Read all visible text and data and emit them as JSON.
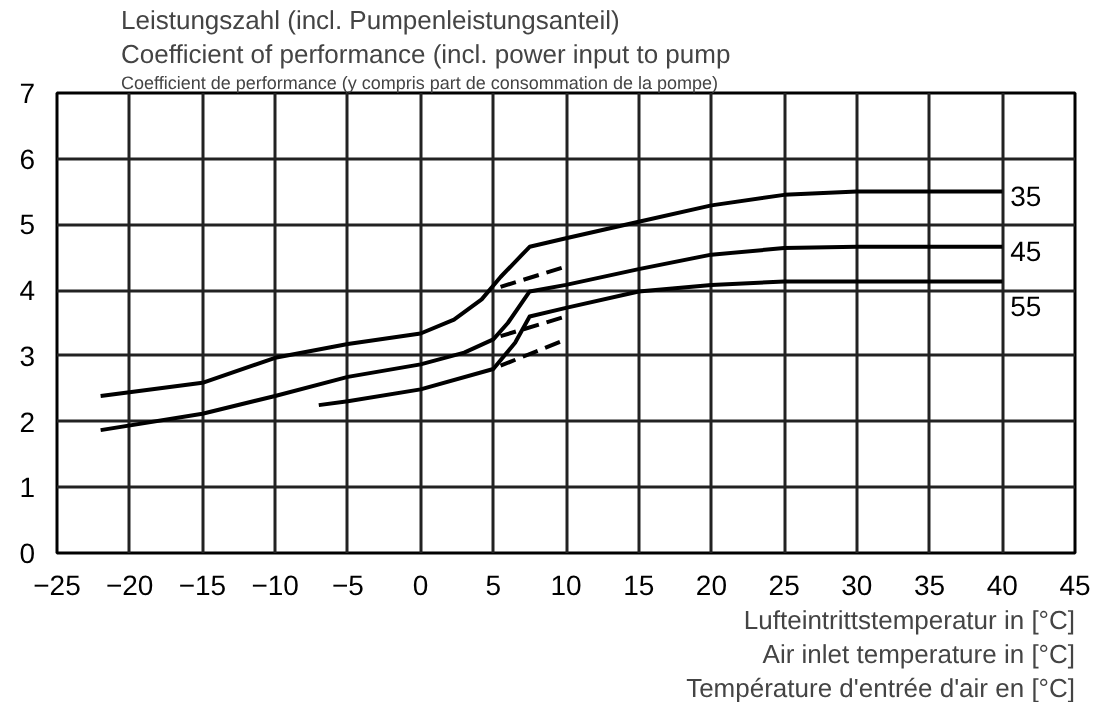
{
  "chart_data": {
    "type": "line",
    "title": "Leistungszahl (incl. Pumpenleistungsanteil)",
    "subtitle": "Coefficient of performance (incl. power input to pump",
    "annotations": [
      "Coefficient de performance (y compris part de consommation de la pompe)"
    ],
    "xlabel": "Lufteintrittstemperatur in [°C]\nAir inlet temperature in [°C]\nTempérature d'entrée d'air en [°C]",
    "xlim": [
      -25,
      45
    ],
    "xticks": [
      -25,
      -20,
      -15,
      -10,
      -5,
      0,
      5,
      10,
      15,
      20,
      25,
      30,
      35,
      40,
      45
    ],
    "ylim": [
      0,
      7
    ],
    "yticks": [
      0,
      1,
      2,
      3,
      4,
      5,
      6,
      7
    ],
    "grid": true,
    "line_style": "solid",
    "series": [
      {
        "name": "35",
        "color": "#000000",
        "x": [
          -22,
          -15,
          -10,
          -5,
          0,
          2.3,
          4.2,
          5.5,
          7.5,
          10,
          15,
          20,
          25,
          30,
          40
        ],
        "values": [
          2.39,
          2.59,
          2.97,
          3.18,
          3.34,
          3.55,
          3.86,
          4.2,
          4.66,
          4.79,
          5.04,
          5.29,
          5.45,
          5.5,
          5.5
        ]
      },
      {
        "name": "45",
        "color": "#000000",
        "x": [
          -22,
          -15,
          -10,
          -5,
          0,
          3,
          5,
          6,
          7.5,
          10,
          15,
          20,
          25,
          30,
          40
        ],
        "values": [
          1.87,
          2.12,
          2.39,
          2.68,
          2.87,
          3.05,
          3.25,
          3.5,
          3.98,
          4.08,
          4.32,
          4.54,
          4.64,
          4.66,
          4.66
        ]
      },
      {
        "name": "55",
        "color": "#000000",
        "x": [
          -7,
          -5,
          0,
          5,
          6.5,
          7.5,
          10,
          15,
          20,
          25,
          40
        ],
        "values": [
          2.25,
          2.31,
          2.49,
          2.8,
          3.2,
          3.6,
          3.73,
          3.98,
          4.08,
          4.13,
          4.13
        ]
      },
      {
        "color": "#000000",
        "line_style": "dashed",
        "x": [
          5.5,
          10
        ],
        "values": [
          4.05,
          4.36
        ]
      },
      {
        "color": "#000000",
        "line_style": "dashed",
        "x": [
          5.5,
          10
        ],
        "values": [
          3.3,
          3.6
        ]
      },
      {
        "color": "#000000",
        "line_style": "dashed",
        "x": [
          5.5,
          10
        ],
        "values": [
          2.85,
          3.25
        ]
      }
    ]
  }
}
